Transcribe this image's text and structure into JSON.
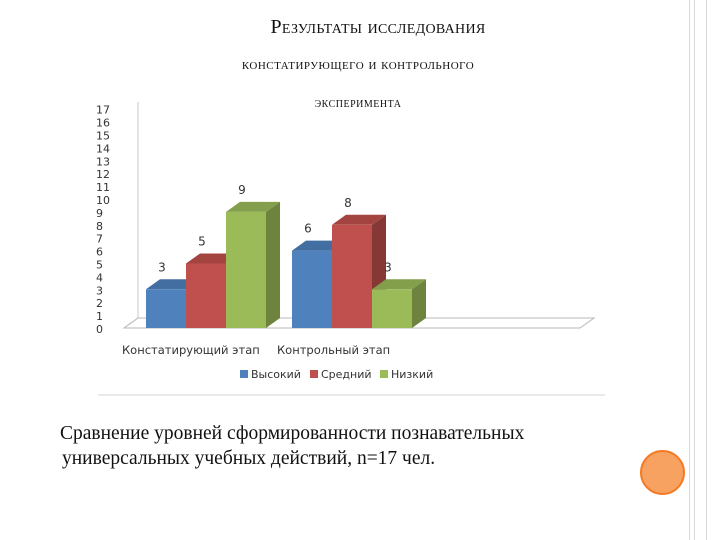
{
  "title": {
    "line1": "Результаты исследования",
    "line2": "констатирующего и контрольного",
    "line3": "эксперимента"
  },
  "caption": {
    "line1": "Сравнение уровней сформированности познавательных",
    "line2": "универсальных учебных действий, n=17 чел."
  },
  "chart_data": {
    "type": "bar",
    "categories": [
      "Констатирующий этап",
      "Контрольный этап"
    ],
    "series": [
      {
        "name": "Высокий",
        "values": [
          3,
          6
        ],
        "color": "#4f81bd"
      },
      {
        "name": "Средний",
        "values": [
          5,
          8
        ],
        "color": "#c0504d"
      },
      {
        "name": "Низкий",
        "values": [
          9,
          3
        ],
        "color": "#9bbb59"
      }
    ],
    "ylim": [
      0,
      17
    ],
    "yticks": [
      0,
      1,
      2,
      3,
      4,
      5,
      6,
      7,
      8,
      9,
      10,
      11,
      12,
      13,
      14,
      15,
      16,
      17
    ],
    "grid": false,
    "legend": "bottom",
    "style": "3d-clustered-column"
  }
}
